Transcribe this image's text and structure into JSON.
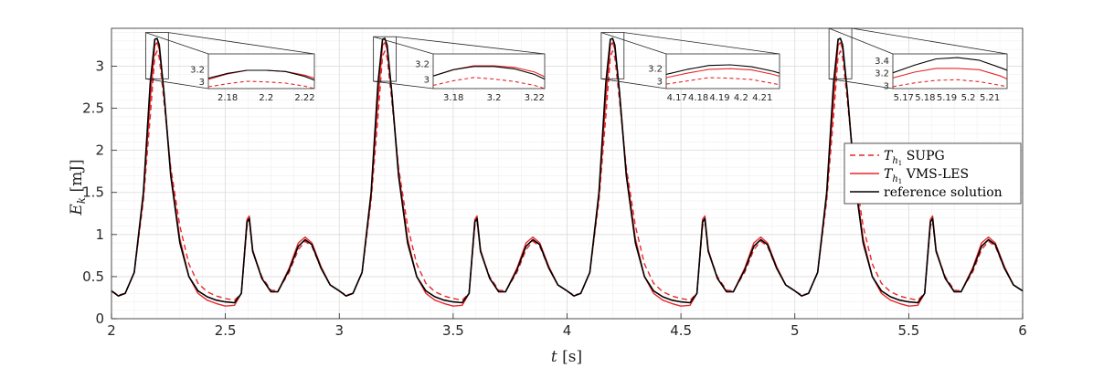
{
  "chart_data": {
    "type": "line",
    "xlabel": "t [s]",
    "xlabel_var": "t",
    "xlabel_unit": "[s]",
    "ylabel": "E_k [mJ]",
    "ylabel_var": "E",
    "ylabel_sub": "k",
    "ylabel_unit": "[mJ]",
    "xlim": [
      2,
      6
    ],
    "ylim": [
      0,
      3.45
    ],
    "xticks": [
      2,
      2.5,
      3,
      3.5,
      4,
      4.5,
      5,
      5.5,
      6
    ],
    "xtick_labels": [
      "2",
      "2.5",
      "3",
      "3.5",
      "4",
      "4.5",
      "5",
      "5.5",
      "6"
    ],
    "yticks": [
      0,
      0.5,
      1,
      1.5,
      2,
      2.5,
      3
    ],
    "ytick_labels": [
      "0",
      "0.5",
      "1",
      "1.5",
      "2",
      "2.5",
      "3"
    ],
    "grid": true,
    "minor_grid": true,
    "legend_position": "right",
    "colors": {
      "reference": "#000000",
      "vms": "#e8262a",
      "supg": "#e8262a",
      "grid": "#e6e6e6"
    },
    "series": [
      {
        "key": "supg",
        "name": "T_h1 SUPG",
        "legend_sym": "T",
        "legend_sub": "h",
        "legend_subsub": "1",
        "legend_label": "SUPG",
        "color": "#e8262a",
        "dash": "6,4",
        "period_points": [
          [
            0.0,
            0.33
          ],
          [
            0.03,
            0.28
          ],
          [
            0.06,
            0.3
          ],
          [
            0.1,
            0.55
          ],
          [
            0.14,
            1.4
          ],
          [
            0.17,
            2.4
          ],
          [
            0.19,
            3.12
          ],
          [
            0.2,
            3.18
          ],
          [
            0.21,
            3.1
          ],
          [
            0.23,
            2.6
          ],
          [
            0.26,
            1.8
          ],
          [
            0.3,
            1.1
          ],
          [
            0.34,
            0.65
          ],
          [
            0.38,
            0.42
          ],
          [
            0.42,
            0.32
          ],
          [
            0.46,
            0.27
          ],
          [
            0.5,
            0.24
          ],
          [
            0.54,
            0.22
          ],
          [
            0.57,
            0.3
          ],
          [
            0.595,
            1.1
          ],
          [
            0.605,
            1.16
          ],
          [
            0.62,
            0.8
          ],
          [
            0.66,
            0.5
          ],
          [
            0.7,
            0.34
          ],
          [
            0.73,
            0.33
          ],
          [
            0.78,
            0.55
          ],
          [
            0.82,
            0.82
          ],
          [
            0.85,
            0.92
          ],
          [
            0.88,
            0.86
          ],
          [
            0.92,
            0.6
          ],
          [
            0.96,
            0.4
          ],
          [
            1.0,
            0.33
          ]
        ]
      },
      {
        "key": "vms",
        "name": "T_h1 VMS-LES",
        "legend_sym": "T",
        "legend_sub": "h",
        "legend_subsub": "1",
        "legend_label": "VMS-LES",
        "color": "#e8262a",
        "dash": "",
        "period_points": [
          [
            0.0,
            0.33
          ],
          [
            0.03,
            0.27
          ],
          [
            0.06,
            0.3
          ],
          [
            0.1,
            0.55
          ],
          [
            0.14,
            1.45
          ],
          [
            0.17,
            2.6
          ],
          [
            0.19,
            3.25
          ],
          [
            0.2,
            3.28
          ],
          [
            0.21,
            3.2
          ],
          [
            0.23,
            2.7
          ],
          [
            0.26,
            1.75
          ],
          [
            0.3,
            0.95
          ],
          [
            0.34,
            0.5
          ],
          [
            0.38,
            0.3
          ],
          [
            0.42,
            0.22
          ],
          [
            0.46,
            0.18
          ],
          [
            0.5,
            0.15
          ],
          [
            0.54,
            0.16
          ],
          [
            0.57,
            0.3
          ],
          [
            0.595,
            1.18
          ],
          [
            0.605,
            1.22
          ],
          [
            0.62,
            0.82
          ],
          [
            0.66,
            0.48
          ],
          [
            0.7,
            0.32
          ],
          [
            0.73,
            0.32
          ],
          [
            0.78,
            0.6
          ],
          [
            0.82,
            0.9
          ],
          [
            0.85,
            0.97
          ],
          [
            0.88,
            0.9
          ],
          [
            0.92,
            0.62
          ],
          [
            0.96,
            0.4
          ],
          [
            1.0,
            0.33
          ]
        ]
      },
      {
        "key": "reference",
        "name": "reference solution",
        "legend_label": "reference solution",
        "color": "#000000",
        "dash": "",
        "period_points": [
          [
            0.0,
            0.33
          ],
          [
            0.03,
            0.27
          ],
          [
            0.06,
            0.3
          ],
          [
            0.1,
            0.55
          ],
          [
            0.14,
            1.5
          ],
          [
            0.17,
            2.8
          ],
          [
            0.19,
            3.32
          ],
          [
            0.2,
            3.33
          ],
          [
            0.21,
            3.25
          ],
          [
            0.23,
            2.7
          ],
          [
            0.26,
            1.7
          ],
          [
            0.3,
            0.9
          ],
          [
            0.34,
            0.5
          ],
          [
            0.38,
            0.33
          ],
          [
            0.42,
            0.26
          ],
          [
            0.46,
            0.22
          ],
          [
            0.5,
            0.2
          ],
          [
            0.54,
            0.19
          ],
          [
            0.57,
            0.3
          ],
          [
            0.595,
            1.15
          ],
          [
            0.605,
            1.19
          ],
          [
            0.62,
            0.8
          ],
          [
            0.66,
            0.48
          ],
          [
            0.7,
            0.32
          ],
          [
            0.73,
            0.32
          ],
          [
            0.78,
            0.58
          ],
          [
            0.82,
            0.86
          ],
          [
            0.85,
            0.94
          ],
          [
            0.88,
            0.88
          ],
          [
            0.92,
            0.6
          ],
          [
            0.96,
            0.4
          ],
          [
            1.0,
            0.33
          ]
        ]
      }
    ],
    "insets": [
      {
        "xlim": [
          2.17,
          2.225
        ],
        "ylim": [
          2.88,
          3.45
        ],
        "xticks": [
          2.18,
          2.2,
          2.22
        ],
        "xtick_labels": [
          "2.18",
          "2.2",
          "2.22"
        ],
        "yticks": [
          3,
          3.2
        ],
        "ytick_labels": [
          "3",
          "3.2"
        ],
        "zoom_x": [
          2.15,
          2.25
        ],
        "zoom_y": [
          2.85,
          3.4
        ],
        "supg": [
          [
            2.17,
            2.91
          ],
          [
            2.18,
            2.96
          ],
          [
            2.19,
            3.0
          ],
          [
            2.2,
            2.99
          ],
          [
            2.21,
            2.97
          ],
          [
            2.22,
            2.92
          ],
          [
            2.225,
            2.88
          ]
        ],
        "vms": [
          [
            2.17,
            3.03
          ],
          [
            2.18,
            3.12
          ],
          [
            2.19,
            3.18
          ],
          [
            2.2,
            3.18
          ],
          [
            2.21,
            3.16
          ],
          [
            2.22,
            3.1
          ],
          [
            2.225,
            3.05
          ]
        ],
        "reference": [
          [
            2.17,
            3.05
          ],
          [
            2.18,
            3.13
          ],
          [
            2.19,
            3.18
          ],
          [
            2.2,
            3.18
          ],
          [
            2.21,
            3.16
          ],
          [
            2.22,
            3.08
          ],
          [
            2.225,
            3.02
          ]
        ]
      },
      {
        "xlim": [
          3.17,
          3.225
        ],
        "ylim": [
          2.88,
          3.32
        ],
        "xticks": [
          3.18,
          3.2,
          3.22
        ],
        "xtick_labels": [
          "3.18",
          "3.2",
          "3.22"
        ],
        "yticks": [
          3,
          3.2
        ],
        "ytick_labels": [
          "3",
          "3.2"
        ],
        "zoom_x": [
          3.15,
          3.25
        ],
        "zoom_y": [
          2.82,
          3.35
        ],
        "supg": [
          [
            3.17,
            2.92
          ],
          [
            3.18,
            2.98
          ],
          [
            3.19,
            3.02
          ],
          [
            3.2,
            3.0
          ],
          [
            3.21,
            2.97
          ],
          [
            3.22,
            2.92
          ],
          [
            3.225,
            2.88
          ]
        ],
        "vms": [
          [
            3.17,
            3.04
          ],
          [
            3.18,
            3.12
          ],
          [
            3.19,
            3.17
          ],
          [
            3.2,
            3.17
          ],
          [
            3.21,
            3.15
          ],
          [
            3.22,
            3.09
          ],
          [
            3.225,
            3.03
          ]
        ],
        "reference": [
          [
            3.17,
            3.04
          ],
          [
            3.18,
            3.12
          ],
          [
            3.19,
            3.16
          ],
          [
            3.2,
            3.16
          ],
          [
            3.21,
            3.13
          ],
          [
            3.22,
            3.06
          ],
          [
            3.225,
            3.0
          ]
        ]
      },
      {
        "xlim": [
          4.165,
          4.218
        ],
        "ylim": [
          2.88,
          3.42
        ],
        "xticks": [
          4.17,
          4.18,
          4.19,
          4.2,
          4.21
        ],
        "xtick_labels": [
          "4.17",
          "4.18",
          "4.19",
          "4.2",
          "4.21"
        ],
        "yticks": [
          3,
          3.2
        ],
        "ytick_labels": [
          "3",
          "3.2"
        ],
        "zoom_x": [
          4.15,
          4.25
        ],
        "zoom_y": [
          2.85,
          3.4
        ],
        "supg": [
          [
            4.165,
            2.95
          ],
          [
            4.175,
            3.0
          ],
          [
            4.185,
            3.05
          ],
          [
            4.195,
            3.04
          ],
          [
            4.205,
            3.02
          ],
          [
            4.215,
            2.96
          ],
          [
            4.218,
            2.94
          ]
        ],
        "vms": [
          [
            4.165,
            3.05
          ],
          [
            4.175,
            3.12
          ],
          [
            4.185,
            3.18
          ],
          [
            4.195,
            3.19
          ],
          [
            4.205,
            3.17
          ],
          [
            4.215,
            3.1
          ],
          [
            4.218,
            3.07
          ]
        ],
        "reference": [
          [
            4.165,
            3.1
          ],
          [
            4.175,
            3.18
          ],
          [
            4.185,
            3.24
          ],
          [
            4.195,
            3.25
          ],
          [
            4.205,
            3.22
          ],
          [
            4.215,
            3.15
          ],
          [
            4.218,
            3.12
          ]
        ]
      },
      {
        "xlim": [
          5.165,
          5.218
        ],
        "ylim": [
          2.95,
          3.5
        ],
        "xticks": [
          5.17,
          5.18,
          5.19,
          5.2,
          5.21
        ],
        "xtick_labels": [
          "5.17",
          "5.18",
          "5.19",
          "5.2",
          "5.21"
        ],
        "yticks": [
          3,
          3.2,
          3.4
        ],
        "ytick_labels": [
          "3",
          "3.2",
          "3.4"
        ],
        "zoom_x": [
          5.15,
          5.25
        ],
        "zoom_y": [
          2.85,
          3.45
        ],
        "supg": [
          [
            5.165,
            2.98
          ],
          [
            5.175,
            3.04
          ],
          [
            5.185,
            3.08
          ],
          [
            5.195,
            3.09
          ],
          [
            5.205,
            3.06
          ],
          [
            5.215,
            3.0
          ],
          [
            5.218,
            2.98
          ]
        ],
        "vms": [
          [
            5.165,
            3.12
          ],
          [
            5.175,
            3.21
          ],
          [
            5.185,
            3.27
          ],
          [
            5.195,
            3.27
          ],
          [
            5.205,
            3.25
          ],
          [
            5.215,
            3.15
          ],
          [
            5.218,
            3.1
          ]
        ],
        "reference": [
          [
            5.165,
            3.2
          ],
          [
            5.175,
            3.32
          ],
          [
            5.185,
            3.42
          ],
          [
            5.195,
            3.44
          ],
          [
            5.205,
            3.4
          ],
          [
            5.215,
            3.28
          ],
          [
            5.218,
            3.24
          ]
        ]
      }
    ]
  }
}
